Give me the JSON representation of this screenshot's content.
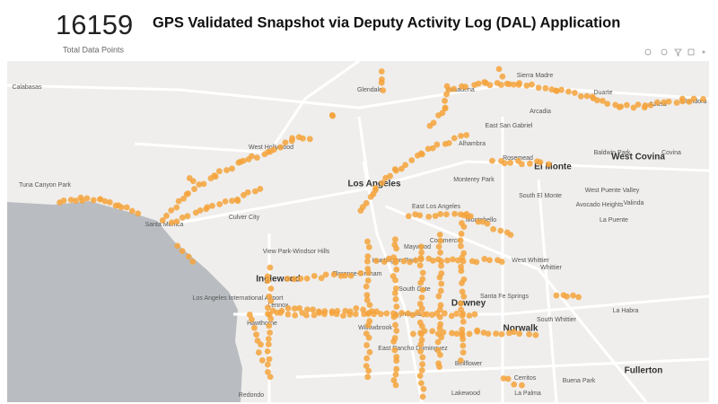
{
  "header": {
    "count": "16159",
    "count_label": "Total Data Points",
    "title": "GPS Validated Snapshot via Deputy Activity Log (DAL) Application"
  },
  "map": {
    "labels": [
      "Calabasas",
      "Glendale",
      "Pasadena",
      "Sierra Madre",
      "Duarte",
      "Arcadia",
      "Azusa",
      "Glendora",
      "East San Gabriel",
      "Alhambra",
      "Baldwin Park",
      "West Covina",
      "Covina",
      "West Hollywood",
      "Rosemead",
      "El Monte",
      "Los Angeles",
      "Monterey Park",
      "Tuna Canyon Park",
      "Santa Monica",
      "Culver City",
      "South El Monte",
      "West Puente Valley",
      "Avocado Heights",
      "Valinda",
      "East Los Angeles",
      "Montebello",
      "La Puente",
      "Commerce",
      "Maywood",
      "Huntington Park",
      "View Park-Windsor Hills",
      "West Whittier",
      "Whittier",
      "Florence-Graham",
      "South Gate",
      "Inglewood",
      "Santa Fe Springs",
      "Downey",
      "Los Angeles International Airport",
      "Lennox",
      "Hawthorne",
      "Lynwood",
      "Willowbrook",
      "South Whittier",
      "La Habra",
      "Norwalk",
      "East Rancho Dominguez",
      "Bellflower",
      "Fullerton",
      "Cerritos",
      "Buena Park",
      "Redondo",
      "Lakewood",
      "La Palma"
    ]
  }
}
